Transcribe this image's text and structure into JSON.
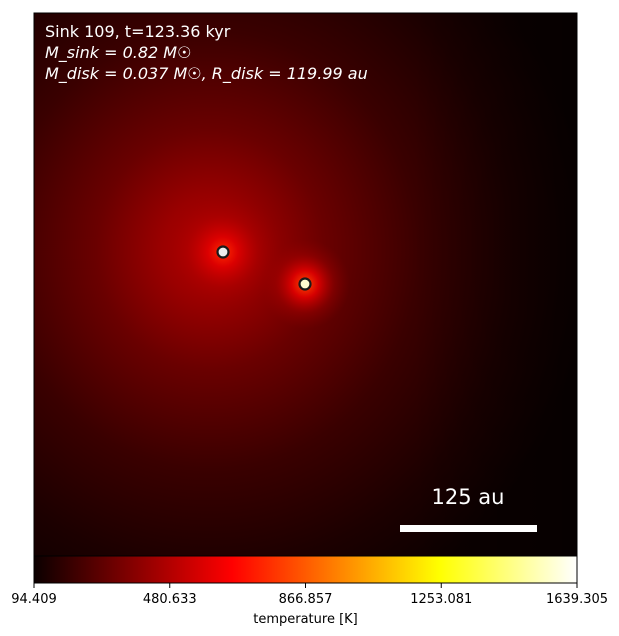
{
  "panel": {
    "title_line": "Sink 109, t=123.36 kyr",
    "sink_mass_line": "M_sink = 0.82 M☉",
    "disk_line": "M_disk = 0.037 M☉, R_disk = 119.99 au",
    "scalebar_label": "125 au"
  },
  "colorbar": {
    "colormap": "hot",
    "label": "temperature [K]",
    "min_value": 94.409,
    "max_value": 1639.305,
    "tick_labels": [
      "94.409",
      "480.633",
      "866.857",
      "1253.081",
      "1639.305"
    ]
  },
  "sinks": [
    {
      "id": "sink-a",
      "fill_color": "#ededed",
      "ring_color": "#1a1a1a"
    },
    {
      "id": "sink-b",
      "fill_color": "#fffcd0",
      "ring_color": "#1a1a1a"
    }
  ],
  "colors": {
    "background_dark": "#0a0000",
    "glow_core": "#d40000",
    "glow_mid": "#700000",
    "scalebar": "#ffffff"
  }
}
